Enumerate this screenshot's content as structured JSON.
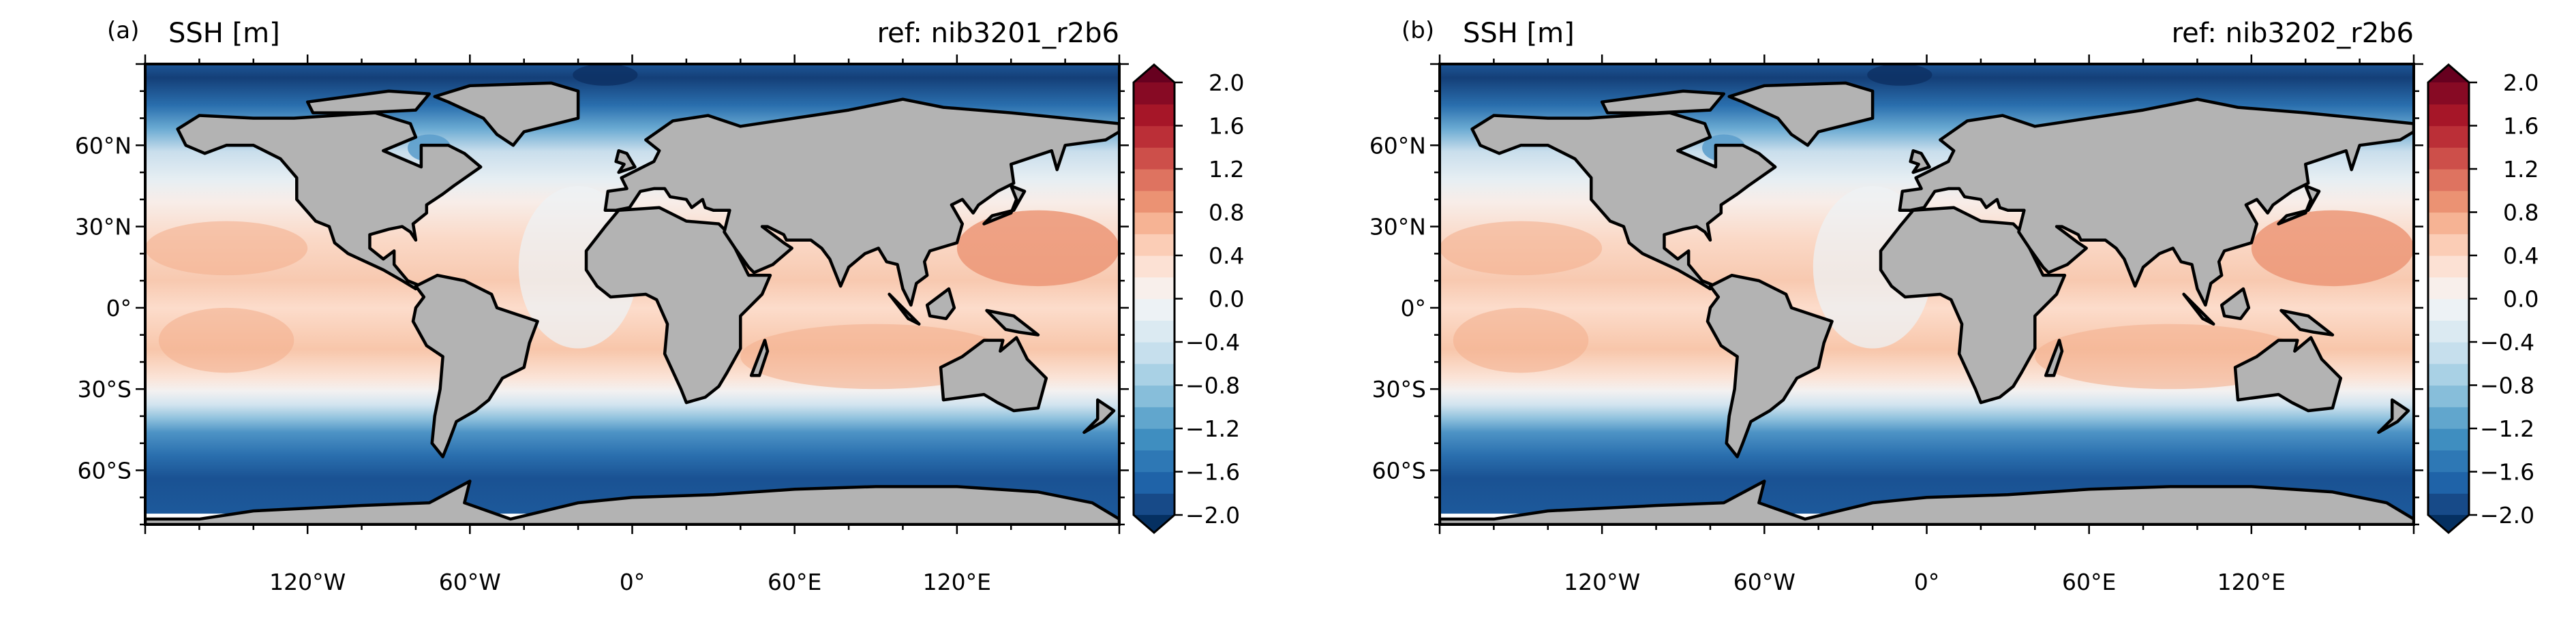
{
  "chart_data": [
    {
      "type": "heatmap",
      "panel_label": "(a)",
      "title": "SSH [m]",
      "subtitle": "ref: nib3201_r2b6",
      "projection": "equirectangular",
      "xlim": [
        -180,
        180
      ],
      "ylim": [
        -80,
        90
      ],
      "xticks": [
        {
          "value": -120,
          "label": "120°W"
        },
        {
          "value": -60,
          "label": "60°W"
        },
        {
          "value": 0,
          "label": "0°"
        },
        {
          "value": 60,
          "label": "60°E"
        },
        {
          "value": 120,
          "label": "120°E"
        }
      ],
      "yticks": [
        {
          "value": 60,
          "label": "60°N"
        },
        {
          "value": 30,
          "label": "30°N"
        },
        {
          "value": 0,
          "label": "0°"
        },
        {
          "value": -30,
          "label": "30°S"
        },
        {
          "value": -60,
          "label": "60°S"
        }
      ]
    },
    {
      "type": "heatmap",
      "panel_label": "(b)",
      "title": "SSH [m]",
      "subtitle": "ref: nib3202_r2b6",
      "projection": "equirectangular",
      "xlim": [
        -180,
        180
      ],
      "ylim": [
        -80,
        90
      ],
      "xticks": [
        {
          "value": -120,
          "label": "120°W"
        },
        {
          "value": -60,
          "label": "60°W"
        },
        {
          "value": 0,
          "label": "0°"
        },
        {
          "value": 60,
          "label": "60°E"
        },
        {
          "value": 120,
          "label": "120°E"
        }
      ],
      "yticks": [
        {
          "value": 60,
          "label": "60°N"
        },
        {
          "value": 30,
          "label": "30°N"
        },
        {
          "value": 0,
          "label": "0°"
        },
        {
          "value": -30,
          "label": "30°S"
        },
        {
          "value": -60,
          "label": "60°S"
        }
      ]
    }
  ],
  "colorbar": {
    "min": -2.0,
    "max": 2.0,
    "step": 0.2,
    "extend": "both",
    "ticks": [
      "2.0",
      "1.6",
      "1.2",
      "0.8",
      "0.4",
      "0.0",
      "−0.4",
      "−0.8",
      "−1.2",
      "−1.6",
      "−2.0"
    ],
    "tick_values": [
      2.0,
      1.6,
      1.2,
      0.8,
      0.4,
      0.0,
      -0.4,
      -0.8,
      -1.2,
      -1.6,
      -2.0
    ],
    "colors": [
      "#174a88",
      "#1f63a8",
      "#2e78b5",
      "#3f8ec0",
      "#61a6cd",
      "#87beda",
      "#a9d1e5",
      "#c6dfed",
      "#dbeaf2",
      "#edf2f5",
      "#f8efeb",
      "#fce1d4",
      "#fbcdb6",
      "#f6b394",
      "#eb9273",
      "#de7360",
      "#cd4f4a",
      "#bb2f37",
      "#a61628",
      "#870a24"
    ],
    "under_color": "#053061",
    "over_color": "#67001f",
    "land_color": "#b3b3b3"
  }
}
